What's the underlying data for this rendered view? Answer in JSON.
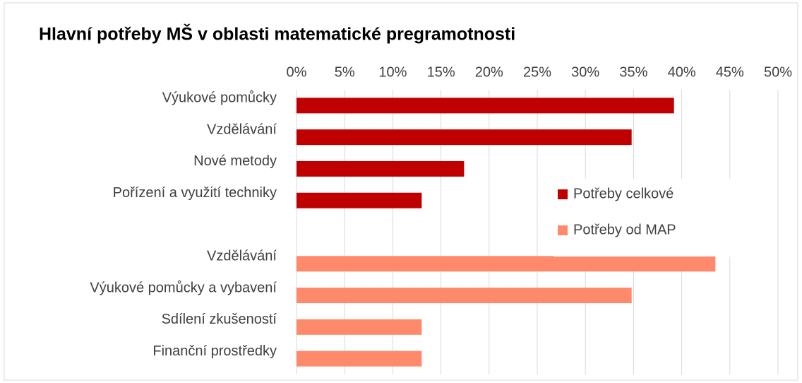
{
  "chart_data": {
    "type": "bar",
    "orientation": "horizontal",
    "title": "Hlavní potřeby MŠ v oblasti matematické pregramotnosti",
    "categories": [
      "Výukové pomůcky",
      "Vzdělávání",
      "Nové metody",
      "Pořízení a využití techniky",
      null,
      "Vzdělávání",
      "Výukové pomůcky a vybavení",
      "Sdílení zkušeností",
      "Finanční prostředky"
    ],
    "series": [
      {
        "name": "Potřeby celkové",
        "color": "#c00000",
        "values": [
          39.2,
          34.8,
          17.4,
          13,
          null,
          null,
          null,
          null,
          null
        ]
      },
      {
        "name": "Potřeby od MAP",
        "color": "#ff8a6b",
        "values": [
          null,
          null,
          null,
          null,
          null,
          43.5,
          34.8,
          13,
          13
        ]
      }
    ],
    "xlim": [
      0,
      50
    ],
    "xticks": [
      {
        "value": 0,
        "label": "0%"
      },
      {
        "value": 5,
        "label": "5%"
      },
      {
        "value": 10,
        "label": "10%"
      },
      {
        "value": 15,
        "label": "15%"
      },
      {
        "value": 20,
        "label": "20%"
      },
      {
        "value": 25,
        "label": "25%"
      },
      {
        "value": 30,
        "label": "30%"
      },
      {
        "value": 35,
        "label": "35%"
      },
      {
        "value": 40,
        "label": "40%"
      },
      {
        "value": 45,
        "label": "45%"
      },
      {
        "value": 50,
        "label": "50%"
      }
    ],
    "grid": true,
    "legend": "right"
  }
}
